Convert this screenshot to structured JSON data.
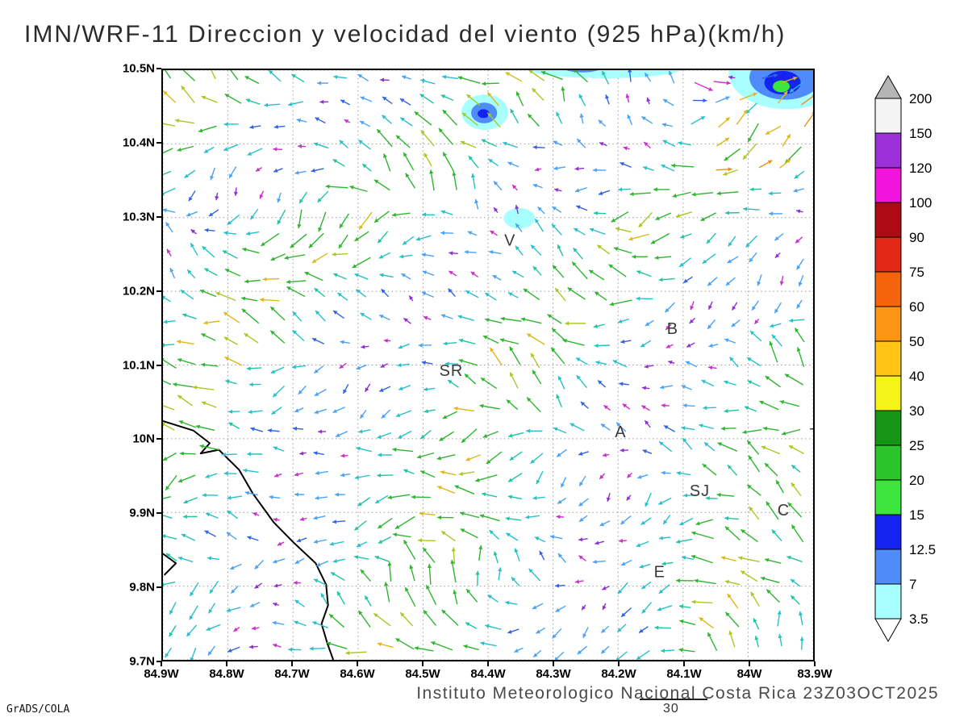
{
  "page": {
    "title": "IMN/WRF-11 Direccion y velocidad del viento (925 hPa)(km/h)",
    "footer": "Instituto Meteorologico Nacional Costa Rica 23Z03OCT2025",
    "credit": "GrADS/COLA",
    "stray_contour_label": "30"
  },
  "chart_data": {
    "type": "vector-field",
    "title": "IMN/WRF-11 Direccion y velocidad del viento (925 hPa)(km/h)",
    "model": "IMN/WRF-11",
    "variable": "Direccion y velocidad del viento",
    "level": "925 hPa",
    "units": "km/h",
    "valid_time": "23Z03OCT2025",
    "source_text": "Instituto Meteorologico Nacional Costa Rica",
    "xlim": [
      -84.9,
      -83.9
    ],
    "ylim": [
      9.7,
      10.5
    ],
    "grid": "dotted 0.1 degree",
    "xticks": [
      {
        "v": -84.9,
        "label": "84.9W"
      },
      {
        "v": -84.8,
        "label": "84.8W"
      },
      {
        "v": -84.7,
        "label": "84.7W"
      },
      {
        "v": -84.6,
        "label": "84.6W"
      },
      {
        "v": -84.5,
        "label": "84.5W"
      },
      {
        "v": -84.4,
        "label": "84.4W"
      },
      {
        "v": -84.3,
        "label": "84.3W"
      },
      {
        "v": -84.2,
        "label": "84.2W"
      },
      {
        "v": -84.1,
        "label": "84.1W"
      },
      {
        "v": -84.0,
        "label": "84W"
      },
      {
        "v": -83.9,
        "label": "83.9W"
      }
    ],
    "yticks": [
      {
        "v": 9.7,
        "label": "9.7N"
      },
      {
        "v": 9.8,
        "label": "9.8N"
      },
      {
        "v": 9.9,
        "label": "9.9N"
      },
      {
        "v": 10.0,
        "label": "10N"
      },
      {
        "v": 10.1,
        "label": "10.1N"
      },
      {
        "v": 10.2,
        "label": "10.2N"
      },
      {
        "v": 10.3,
        "label": "10.3N"
      },
      {
        "v": 10.4,
        "label": "10.4N"
      },
      {
        "v": 10.5,
        "label": "10.5N"
      }
    ],
    "colorbar": {
      "levels": [
        "3.5",
        "7",
        "12.5",
        "15",
        "20",
        "25",
        "30",
        "40",
        "50",
        "60",
        "75",
        "90",
        "100",
        "120",
        "150",
        "200"
      ],
      "band_colors": [
        "#a8ffff",
        "#4f8cfa",
        "#1523f0",
        "#3ce63c",
        "#2bc42b",
        "#159415",
        "#f4f418",
        "#ffc414",
        "#fc9414",
        "#f4640a",
        "#e12814",
        "#ad0a14",
        "#f014dc",
        "#9b30d9",
        "#f4f4f4"
      ],
      "below_color": "#ffffff",
      "above_color": "#b5b5b5"
    },
    "stations": [
      {
        "label": "V",
        "lon": -84.375,
        "lat": 10.262
      },
      {
        "label": "B",
        "lon": -84.125,
        "lat": 10.142
      },
      {
        "label": "SR",
        "lon": -84.475,
        "lat": 10.085
      },
      {
        "label": "A",
        "lon": -84.205,
        "lat": 10.002
      },
      {
        "label": "SJ",
        "lon": -84.09,
        "lat": 9.922
      },
      {
        "label": "C",
        "lon": -83.955,
        "lat": 9.896
      },
      {
        "label": "E",
        "lon": -84.145,
        "lat": 9.812
      },
      {
        "label": "+",
        "lon": -83.906,
        "lat": 10.006
      }
    ],
    "coastline": [
      [
        [
          -84.9,
          10.024
        ],
        [
          -84.853,
          10.011
        ],
        [
          -84.828,
          9.994
        ],
        [
          -84.842,
          9.98
        ],
        [
          -84.814,
          9.985
        ],
        [
          -84.783,
          9.958
        ],
        [
          -84.762,
          9.926
        ],
        [
          -84.73,
          9.887
        ],
        [
          -84.7,
          9.86
        ],
        [
          -84.665,
          9.831
        ],
        [
          -84.649,
          9.802
        ],
        [
          -84.646,
          9.774
        ],
        [
          -84.656,
          9.749
        ],
        [
          -84.647,
          9.722
        ],
        [
          -84.638,
          9.7
        ]
      ],
      [
        [
          -84.9,
          9.844
        ],
        [
          -84.88,
          9.831
        ],
        [
          -84.898,
          9.815
        ]
      ]
    ],
    "shaded_regions": [
      {
        "color": "#a8ffff",
        "cx": -84.405,
        "cy": 10.443,
        "rx": 0.036,
        "ry": 0.024
      },
      {
        "color": "#4f8cfa",
        "cx": -84.406,
        "cy": 10.442,
        "rx": 0.02,
        "ry": 0.014
      },
      {
        "color": "#1523f0",
        "cx": -84.407,
        "cy": 10.441,
        "rx": 0.009,
        "ry": 0.006
      },
      {
        "color": "#a8ffff",
        "cx": -84.352,
        "cy": 10.299,
        "rx": 0.024,
        "ry": 0.014
      },
      {
        "color": "#a8ffff",
        "cx": -84.22,
        "cy": 10.503,
        "rx": 0.12,
        "ry": 0.014
      },
      {
        "color": "#4f8cfa",
        "cx": -84.255,
        "cy": 10.504,
        "rx": 0.03,
        "ry": 0.007
      },
      {
        "color": "#a8ffff",
        "cx": -83.94,
        "cy": 10.497,
        "rx": 0.09,
        "ry": 0.05
      },
      {
        "color": "#4f8cfa",
        "cx": -83.943,
        "cy": 10.49,
        "rx": 0.055,
        "ry": 0.03
      },
      {
        "color": "#1523f0",
        "cx": -83.947,
        "cy": 10.483,
        "rx": 0.028,
        "ry": 0.016
      },
      {
        "color": "#3ce63c",
        "cx": -83.949,
        "cy": 10.478,
        "rx": 0.013,
        "ry": 0.008
      }
    ],
    "vector_field": {
      "description": "Wind vectors on a regular grid, dominant easterly flow (arrows point W/SW), colored by speed",
      "cols": 30,
      "rows": 27,
      "seed": 7,
      "arrow_colors": {
        "purple": "#8f2fd0",
        "magenta": "#c92fc9",
        "blue": "#2f62e8",
        "lightblue": "#4aa2f5",
        "cyan": "#26c0cb",
        "teal": "#1fc4a2",
        "green": "#2eb52e",
        "yellowgreen": "#a8c822",
        "gold": "#e0b816",
        "orange": "#ef8c1a"
      }
    }
  }
}
